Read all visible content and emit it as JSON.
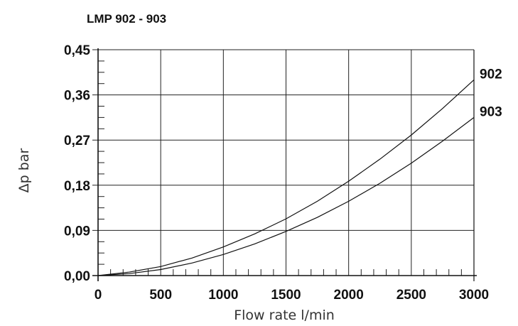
{
  "chart_data": {
    "type": "line",
    "title": "LMP 902 - 903",
    "xlabel": "Flow rate l/min",
    "ylabel": "Δp bar",
    "xlim": [
      0,
      3000
    ],
    "ylim": [
      0,
      0.45
    ],
    "x_ticks": [
      "0",
      "500",
      "1000",
      "1500",
      "2000",
      "2500",
      "3000"
    ],
    "y_ticks": [
      "0,00",
      "0,09",
      "0,18",
      "0,27",
      "0,36",
      "0,45"
    ],
    "grid": true,
    "x": [
      0,
      250,
      500,
      750,
      1000,
      1250,
      1500,
      1750,
      2000,
      2250,
      2500,
      2750,
      3000
    ],
    "series": [
      {
        "name": "902",
        "values": [
          0.0,
          0.007,
          0.018,
          0.035,
          0.057,
          0.083,
          0.113,
          0.148,
          0.188,
          0.232,
          0.28,
          0.333,
          0.39
        ]
      },
      {
        "name": "903",
        "values": [
          0.0,
          0.004,
          0.012,
          0.025,
          0.042,
          0.063,
          0.088,
          0.116,
          0.148,
          0.184,
          0.224,
          0.268,
          0.315
        ]
      }
    ],
    "line_color": "#111111",
    "grid_color": "#222222"
  }
}
